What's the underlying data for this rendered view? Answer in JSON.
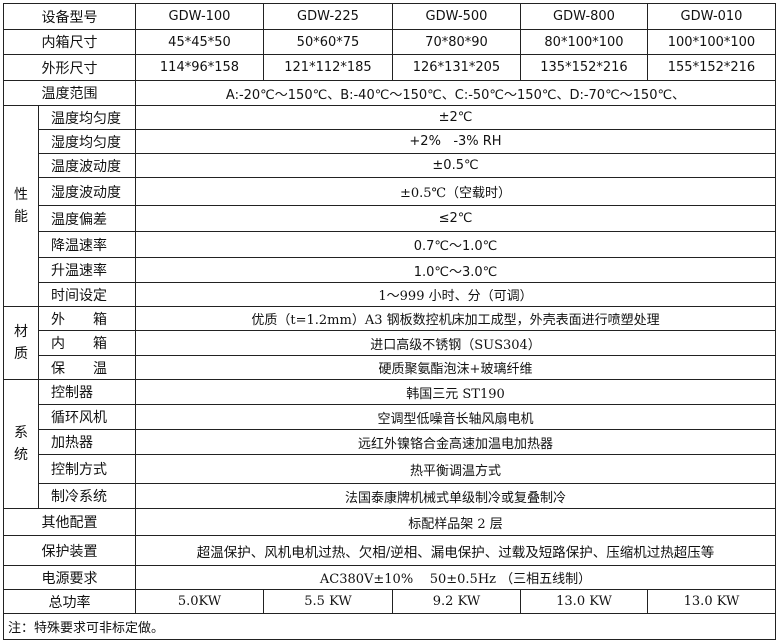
{
  "header": {
    "label": "设备型号",
    "models": [
      "GDW-100",
      "GDW-225",
      "GDW-500",
      "GDW-800",
      "GDW-010"
    ]
  },
  "inner_size": {
    "label": "内箱尺寸",
    "values": [
      "45*45*50",
      "50*60*75",
      "70*80*90",
      "80*100*100",
      "100*100*100"
    ]
  },
  "outer_size": {
    "label": "外形尺寸",
    "values": [
      "114*96*158",
      "121*112*185",
      "126*131*205",
      "135*152*216",
      "155*152*216"
    ]
  },
  "temp_range": {
    "label": "温度范围",
    "value": "A:-20℃～150℃、B:-40℃～150℃、C:-50℃～150℃、D:-70℃～150℃、"
  },
  "performance": {
    "group": "性能",
    "rows": [
      {
        "label": "温度均匀度",
        "value": "±2℃"
      },
      {
        "label": "湿度均匀度",
        "value": "+2%   -3% RH"
      },
      {
        "label": "温度波动度",
        "value": "±0.5℃"
      },
      {
        "label": "湿度波动度",
        "value": "±0.5℃（空载时）"
      },
      {
        "label": "温度偏差",
        "value": "≤2℃"
      },
      {
        "label": "降温速率",
        "value": "0.7℃～1.0℃"
      },
      {
        "label": "升温速率",
        "value": "1.0℃～3.0℃"
      },
      {
        "label": "时间设定",
        "value": "1～999 小时、分（可调）"
      }
    ]
  },
  "material": {
    "group": "材质",
    "rows": [
      {
        "label": "外　　箱",
        "value": "优质（t=1.2mm）A3 钢板数控机床加工成型，外壳表面进行喷塑处理"
      },
      {
        "label": "内　　箱",
        "value": "进口高级不锈钢（SUS304）"
      },
      {
        "label": "保　　温",
        "value": "硬质聚氨酯泡沫+玻璃纤维"
      }
    ]
  },
  "system": {
    "group": "系统",
    "rows": [
      {
        "label": "控制器",
        "value": "韩国三元 ST190"
      },
      {
        "label": "循环风机",
        "value": "空调型低噪音长轴风扇电机"
      },
      {
        "label": "加热器",
        "value": "远红外镍铬合金高速加温电加热器"
      },
      {
        "label": "控制方式",
        "value": "热平衡调温方式"
      },
      {
        "label": "制冷系统",
        "value": "法国泰康牌机械式单级制冷或复叠制冷"
      }
    ]
  },
  "other": {
    "label": "其他配置",
    "value": "标配样品架 2 层"
  },
  "protection": {
    "label": "保护装置",
    "value": "超温保护、风机电机过热、欠相/逆相、漏电保护、过载及短路保护、压缩机过热超压等"
  },
  "power_req": {
    "label": "电源要求",
    "value": "AC380V±10%    50±0.5Hz （三相五线制）"
  },
  "total_power": {
    "label": "总功率",
    "values": [
      "5.0KW",
      "5.5 KW",
      "9.2 KW",
      "13.0 KW",
      "13.0 KW"
    ]
  },
  "note": "注：特殊要求可非标定做。"
}
